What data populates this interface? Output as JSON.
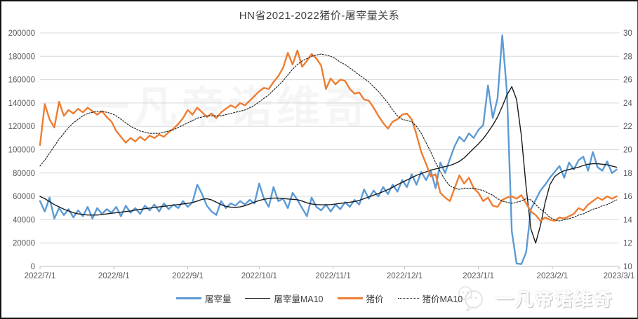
{
  "title": "HN省2021-2022猪价-屠宰量关系",
  "watermark": {
    "center_text": "一凡帝诺维奇",
    "brand_text": "一凡帝诺维奇"
  },
  "legend": [
    {
      "label": "屠宰量",
      "color": "#5B9BD5",
      "thick": true,
      "dotted": false
    },
    {
      "label": "屠宰量MA10",
      "color": "#1a1a1a",
      "thick": false,
      "dotted": false
    },
    {
      "label": "猪价",
      "color": "#ED7D31",
      "thick": true,
      "dotted": false
    },
    {
      "label": "猪价MA10",
      "color": "#1a1a1a",
      "thick": false,
      "dotted": true
    }
  ],
  "colors": {
    "slaughter": "#5B9BD5",
    "price": "#ED7D31",
    "ma": "#1a1a1a",
    "gridline": "#d9d9d9",
    "axis_line": "#bfbfbf",
    "axis_label": "#595959",
    "title_text": "#404040"
  },
  "chart_data": {
    "type": "line",
    "title": "HN省2021-2022猪价-屠宰量关系",
    "grid": "horizontal",
    "legend_position": "bottom",
    "x_total_days": 243,
    "x_day_step": 2,
    "x_tick_labels": [
      "2022/7/1",
      "2022/8/1",
      "2022/9/1",
      "2022/10/1",
      "2022/11/1",
      "2022/12/1",
      "2023/1/1",
      "2023/2/1",
      "2023/3/1"
    ],
    "x_tick_day_offsets": [
      0,
      31,
      62,
      92,
      123,
      153,
      184,
      215,
      243
    ],
    "y_left": {
      "min": 0,
      "max": 200000,
      "ticks": [
        "0",
        "20000",
        "40000",
        "60000",
        "80000",
        "100000",
        "120000",
        "140000",
        "160000",
        "180000",
        "200000"
      ],
      "tick_values": [
        0,
        20000,
        40000,
        60000,
        80000,
        100000,
        120000,
        140000,
        160000,
        180000,
        200000
      ]
    },
    "y_right": {
      "min": 10,
      "max": 30,
      "ticks": [
        "10",
        "12",
        "14",
        "16",
        "18",
        "20",
        "22",
        "24",
        "26",
        "28",
        "30"
      ],
      "tick_values": [
        10,
        12,
        14,
        16,
        18,
        20,
        22,
        24,
        26,
        28,
        30
      ]
    },
    "series": [
      {
        "name": "屠宰量",
        "axis": "left",
        "color": "#5B9BD5",
        "width": 2.4,
        "dash": null,
        "values": [
          56000,
          47000,
          59000,
          41000,
          50000,
          44000,
          49000,
          42000,
          48000,
          43000,
          51000,
          41000,
          50000,
          45000,
          49000,
          46000,
          51000,
          43000,
          52000,
          46000,
          50000,
          45000,
          52000,
          48000,
          53000,
          47000,
          54000,
          49000,
          53000,
          50000,
          56000,
          51000,
          55000,
          70000,
          62000,
          52000,
          47000,
          44000,
          56000,
          50000,
          54000,
          52000,
          56000,
          53000,
          57000,
          54000,
          71000,
          58000,
          51000,
          68000,
          56000,
          58000,
          50000,
          63000,
          57000,
          50000,
          43000,
          59000,
          51000,
          48000,
          53000,
          47000,
          53000,
          49000,
          55000,
          51000,
          57000,
          53000,
          66000,
          58000,
          65000,
          60000,
          68000,
          62000,
          70000,
          64000,
          74000,
          68000,
          79000,
          70000,
          81000,
          74000,
          82000,
          67000,
          89000,
          80000,
          92000,
          103000,
          111000,
          107000,
          114000,
          110000,
          117000,
          121000,
          155000,
          127000,
          144000,
          198000,
          148000,
          30000,
          2500,
          2000,
          12000,
          49000,
          57000,
          65000,
          70000,
          76000,
          81000,
          86000,
          76000,
          89000,
          83000,
          91000,
          94000,
          82000,
          98000,
          85000,
          82000,
          90000,
          80000,
          83000
        ]
      },
      {
        "name": "屠宰量MA10",
        "axis": "left",
        "color": "#1a1a1a",
        "width": 1.4,
        "dash": null,
        "values": [
          60000,
          58000,
          55500,
          53000,
          51000,
          49000,
          47500,
          46000,
          45000,
          44500,
          44000,
          44000,
          44000,
          44500,
          45000,
          45500,
          46000,
          46500,
          47000,
          47500,
          48200,
          48800,
          49400,
          50000,
          50500,
          51000,
          51500,
          52000,
          52500,
          53000,
          53500,
          54000,
          54800,
          56000,
          57500,
          58000,
          57000,
          55000,
          53000,
          51500,
          50800,
          50600,
          51000,
          52000,
          53500,
          55000,
          56500,
          57500,
          58200,
          58500,
          58500,
          58200,
          57800,
          57500,
          57200,
          56000,
          54500,
          53500,
          53000,
          52800,
          52800,
          53000,
          53400,
          54000,
          54500,
          55000,
          55600,
          56500,
          58000,
          59500,
          61000,
          62500,
          64000,
          65800,
          67800,
          70000,
          72000,
          74000,
          76000,
          78000,
          79500,
          81000,
          82500,
          83500,
          84500,
          85500,
          86500,
          88000,
          90000,
          93000,
          97000,
          101000,
          105000,
          109500,
          115000,
          121000,
          128000,
          137000,
          147000,
          154000,
          143000,
          112000,
          68000,
          32000,
          20000,
          35000,
          55000,
          70000,
          77000,
          80000,
          82000,
          83000,
          84000,
          85000,
          86500,
          87500,
          88000,
          88000,
          87500,
          87000,
          86000,
          85000
        ]
      },
      {
        "name": "猪价",
        "axis": "right",
        "color": "#ED7D31",
        "width": 2.4,
        "dash": null,
        "values": [
          20.4,
          23.9,
          22.6,
          21.9,
          24.1,
          22.9,
          23.4,
          23.1,
          23.5,
          23.2,
          23.6,
          23.3,
          23.0,
          23.3,
          22.8,
          22.4,
          21.6,
          21.1,
          20.6,
          21.0,
          20.7,
          21.1,
          20.8,
          21.2,
          21.0,
          21.3,
          21.1,
          21.5,
          21.8,
          22.2,
          22.7,
          23.4,
          23.0,
          23.6,
          23.2,
          22.8,
          23.1,
          22.7,
          23.2,
          23.5,
          23.8,
          23.6,
          24.0,
          23.8,
          24.2,
          24.6,
          25.0,
          25.3,
          25.2,
          25.8,
          26.3,
          27.0,
          28.3,
          27.3,
          28.5,
          27.1,
          27.6,
          28.2,
          27.8,
          27.2,
          25.2,
          26.1,
          25.6,
          26.0,
          25.9,
          25.2,
          24.8,
          24.9,
          24.3,
          24.2,
          23.6,
          22.9,
          22.3,
          21.8,
          22.4,
          22.6,
          23.0,
          23.1,
          22.6,
          21.3,
          19.8,
          18.8,
          17.7,
          17.9,
          16.3,
          15.9,
          15.6,
          16.7,
          17.8,
          17.1,
          17.6,
          16.7,
          16.3,
          15.6,
          15.9,
          15.2,
          15.1,
          15.7,
          15.9,
          16.0,
          15.8,
          16.1,
          15.4,
          14.7,
          14.4,
          13.9,
          14.2,
          14.0,
          13.9,
          14.2,
          14.1,
          14.3,
          14.5,
          15.0,
          14.8,
          15.3,
          15.6,
          15.9,
          15.7,
          16.0,
          15.8,
          16.0
        ]
      },
      {
        "name": "猪价MA10",
        "axis": "right",
        "color": "#1a1a1a",
        "width": 1.1,
        "dash": "2,2",
        "values": [
          18.6,
          19.1,
          19.7,
          20.3,
          20.9,
          21.4,
          21.9,
          22.3,
          22.6,
          22.9,
          23.1,
          23.2,
          23.3,
          23.3,
          23.2,
          23.1,
          22.9,
          22.6,
          22.3,
          22.0,
          21.8,
          21.6,
          21.5,
          21.4,
          21.4,
          21.4,
          21.5,
          21.6,
          21.7,
          21.9,
          22.1,
          22.3,
          22.5,
          22.7,
          22.8,
          22.9,
          22.9,
          22.9,
          22.9,
          23.0,
          23.1,
          23.2,
          23.3,
          23.4,
          23.6,
          23.8,
          24.1,
          24.4,
          24.7,
          25.1,
          25.5,
          25.9,
          26.4,
          26.9,
          27.3,
          27.6,
          27.8,
          28.0,
          28.1,
          28.2,
          28.1,
          28.0,
          27.8,
          27.5,
          27.3,
          27.0,
          26.7,
          26.4,
          26.1,
          25.8,
          25.4,
          25.0,
          24.5,
          24.0,
          23.4,
          22.9,
          22.6,
          22.5,
          22.4,
          22.0,
          21.4,
          20.6,
          19.8,
          18.9,
          18.1,
          17.4,
          16.9,
          16.7,
          16.6,
          16.7,
          16.7,
          16.7,
          16.6,
          16.5,
          16.3,
          16.1,
          15.8,
          15.6,
          15.5,
          15.4,
          15.5,
          15.6,
          15.8,
          15.7,
          15.3,
          14.9,
          14.6,
          14.2,
          14.0,
          13.9,
          14.0,
          14.1,
          14.2,
          14.4,
          14.5,
          14.7,
          14.9,
          15.0,
          15.2,
          15.3,
          15.5,
          15.7
        ]
      }
    ]
  }
}
